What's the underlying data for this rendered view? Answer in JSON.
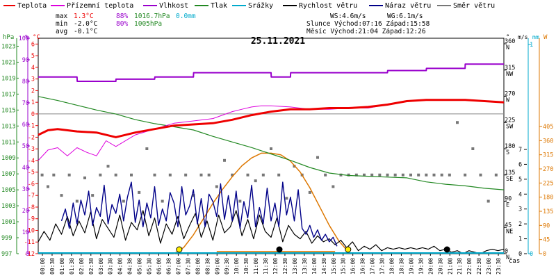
{
  "chart_data": {
    "type": "line",
    "title": "25.11.2021",
    "legend": {
      "placement": "top",
      "items": [
        {
          "key": "temp",
          "label": "Teplota",
          "color": "#ee0000"
        },
        {
          "key": "apparent",
          "label": "Přízemní teplota",
          "color": "#dd00dd"
        },
        {
          "key": "humidity",
          "label": "Vlhkost",
          "color": "#9900cc"
        },
        {
          "key": "pressure",
          "label": "Tlak",
          "color": "#228822"
        },
        {
          "key": "rain",
          "label": "Srážky",
          "color": "#00aacc"
        },
        {
          "key": "wind",
          "label": "Rychlost větru",
          "color": "#000000"
        },
        {
          "key": "gust",
          "label": "Náraz větru",
          "color": "#000088"
        },
        {
          "key": "dir",
          "label": "Směr větru",
          "color": "#777777"
        }
      ]
    },
    "summary": {
      "max_label": "max",
      "max_temp": "1.3°C",
      "max_hum": "88%",
      "max_press": "1016.7hPa",
      "max_rain": "0.0mm",
      "min_label": "min",
      "min_temp": "-2.0°C",
      "min_hum": "80%",
      "min_press": "1005hPa",
      "avg_label": "avg",
      "avg_temp": "-0.1°C",
      "ws": "WS:4.6m/s",
      "wg": "WG:6.1m/s",
      "sun": "Slunce Východ:07:16  Západ:15:58",
      "moon": "Měsíc  Východ:21:04  Západ:12:26"
    },
    "axes": {
      "hpa_title": "hPa",
      "pct_title": "%",
      "temp_title": "°C",
      "dir_title": "°",
      "ms_title": "m/s",
      "mm_title": "mm",
      "w_title": "W",
      "hpa_ticks": [
        "997",
        "999",
        "1001",
        "1003",
        "1005",
        "1007",
        "1009",
        "1011",
        "1013",
        "1015",
        "1017",
        "1019",
        "1021",
        "1023"
      ],
      "pct_ticks": [
        "0",
        "10",
        "20",
        "30",
        "40",
        "50",
        "60",
        "70",
        "80",
        "90",
        "100"
      ],
      "temp_ticks": [
        "-12",
        "-11",
        "-10",
        "-9",
        "-8",
        "-7",
        "-6",
        "-5",
        "-4",
        "-3",
        "-2",
        "-1",
        "0",
        "1",
        "2",
        "3",
        "4",
        "5",
        "6"
      ],
      "dir_ticks": [
        {
          "deg": "0",
          "label": "N"
        },
        {
          "deg": "45",
          "label": "NE"
        },
        {
          "deg": "90",
          "label": "E"
        },
        {
          "deg": "135",
          "label": "SE"
        },
        {
          "deg": "180",
          "label": "S"
        },
        {
          "deg": "225",
          "label": "SW"
        },
        {
          "deg": "270",
          "label": "W"
        },
        {
          "deg": "315",
          "label": "NW"
        },
        {
          "deg": "360",
          "label": "N"
        }
      ],
      "ms_ticks": [
        "0",
        "1",
        "2",
        "3",
        "4",
        "5",
        "6",
        "7"
      ],
      "mm_ticks": [
        "0",
        "1"
      ],
      "w_ticks": [
        "0",
        "45",
        "90",
        "135",
        "180",
        "225",
        "270",
        "315",
        "360",
        "405"
      ],
      "x_title": "čas",
      "x_ticks": [
        "00:00",
        "00:30",
        "01:00",
        "01:30",
        "02:00",
        "02:30",
        "03:00",
        "03:30",
        "04:00",
        "04:30",
        "05:00",
        "05:30",
        "06:00",
        "06:30",
        "07:00",
        "07:30",
        "08:00",
        "08:30",
        "09:00",
        "09:30",
        "10:00",
        "10:30",
        "11:00",
        "11:30",
        "12:00",
        "12:30",
        "13:00",
        "13:30",
        "14:00",
        "14:30",
        "15:00",
        "15:30",
        "16:00",
        "16:30",
        "17:00",
        "17:30",
        "18:00",
        "18:30",
        "19:00",
        "19:30",
        "20:00",
        "20:30",
        "21:00",
        "21:30",
        "22:00",
        "22:30",
        "23:00",
        "23:30"
      ],
      "temp_range": [
        -12,
        6.5
      ],
      "hpa_range": [
        997,
        1024
      ],
      "pct_range": [
        0,
        100
      ],
      "ms_range": [
        0,
        7
      ],
      "w_range": [
        0,
        405
      ],
      "dir_range": [
        0,
        360
      ]
    },
    "series": {
      "temp": {
        "h": [
          0,
          0.5,
          1,
          2,
          3,
          4,
          5,
          6,
          7,
          8,
          9,
          10,
          11,
          12,
          13,
          14,
          15,
          16,
          17,
          18,
          19,
          20,
          21,
          22,
          23,
          24
        ],
        "v": [
          -1.8,
          -1.4,
          -1.3,
          -1.5,
          -1.6,
          -2.0,
          -1.6,
          -1.3,
          -1.0,
          -0.9,
          -0.8,
          -0.5,
          -0.1,
          0.2,
          0.4,
          0.4,
          0.5,
          0.5,
          0.6,
          0.8,
          1.1,
          1.2,
          1.2,
          1.2,
          1.1,
          1.0
        ]
      },
      "apparent": {
        "h": [
          0,
          0.5,
          1,
          1.5,
          2,
          2.5,
          3,
          3.5,
          4,
          5,
          6,
          7,
          8,
          9,
          10,
          10.5,
          11,
          11.5,
          12,
          13,
          14,
          15,
          16,
          17,
          18,
          19,
          20,
          21,
          22,
          23,
          24
        ],
        "v": [
          -4.0,
          -3.1,
          -2.9,
          -3.6,
          -2.9,
          -3.3,
          -3.6,
          -2.3,
          -2.8,
          -1.8,
          -1.3,
          -0.8,
          -0.6,
          -0.4,
          0.2,
          0.4,
          0.6,
          0.7,
          0.7,
          0.6,
          0.4,
          0.4,
          0.5,
          0.5,
          0.8,
          1.1,
          1.2,
          1.2,
          1.2,
          1.1,
          1.0
        ]
      },
      "humidity": {
        "h": [
          0,
          2,
          2.01,
          4,
          4.01,
          6,
          6.01,
          8,
          8.01,
          12,
          12.01,
          13,
          13.01,
          18,
          18.01,
          20,
          20.01,
          22,
          22.01,
          24
        ],
        "v": [
          82,
          82,
          80,
          80,
          81,
          81,
          82,
          82,
          84,
          84,
          82,
          82,
          84,
          84,
          85,
          85,
          86,
          86,
          88,
          88
        ]
      },
      "pressure": {
        "h": [
          0,
          1,
          2,
          3,
          4,
          5,
          6,
          7,
          8,
          9,
          10,
          11,
          12,
          13,
          14,
          15,
          16,
          17,
          18,
          19,
          20,
          21,
          22,
          23,
          24
        ],
        "v": [
          1016.7,
          1016.2,
          1015.6,
          1015.0,
          1014.5,
          1013.8,
          1013.3,
          1012.9,
          1012.5,
          1011.7,
          1011.0,
          1010.3,
          1009.5,
          1008.7,
          1007.8,
          1007.1,
          1006.8,
          1006.7,
          1006.6,
          1006.5,
          1006.0,
          1005.7,
          1005.5,
          1005.2,
          1005.0
        ]
      },
      "wind": {
        "h": [
          0,
          0.3,
          0.6,
          0.9,
          1.2,
          1.5,
          1.8,
          2.1,
          2.4,
          2.7,
          3,
          3.3,
          3.6,
          3.9,
          4.2,
          4.5,
          4.8,
          5.1,
          5.4,
          5.7,
          6,
          6.3,
          6.6,
          6.9,
          7.2,
          7.5,
          7.8,
          8.1,
          8.4,
          8.7,
          9,
          9.3,
          9.6,
          9.9,
          10.2,
          10.5,
          10.8,
          11.1,
          11.4,
          11.7,
          12,
          12.3,
          12.6,
          12.9,
          13.2,
          13.5,
          13.8,
          14.1,
          14.4,
          14.7,
          15,
          15.3,
          15.6,
          15.9,
          16.2,
          16.5,
          16.8,
          17.1,
          17.4,
          17.7,
          18,
          18.3,
          18.6,
          18.9,
          19.2,
          19.5,
          19.8,
          20.1,
          20.4,
          20.7,
          21,
          21.3,
          21.6,
          21.9,
          22.2,
          22.5,
          22.8,
          23.1,
          23.4,
          23.7,
          24
        ],
        "v": [
          0.8,
          1.5,
          0.9,
          2.0,
          1.3,
          2.5,
          1.2,
          2.2,
          1.4,
          2.8,
          1.0,
          2.3,
          1.7,
          1.1,
          2.6,
          0.9,
          2.1,
          1.6,
          2.9,
          1.2,
          2.4,
          0.7,
          2.0,
          1.3,
          2.5,
          1.0,
          1.9,
          2.7,
          1.1,
          2.2,
          0.9,
          2.6,
          1.4,
          1.8,
          2.9,
          1.2,
          2.3,
          1.0,
          2.6,
          1.5,
          1.1,
          2.4,
          0.8,
          1.9,
          1.3,
          1.0,
          1.5,
          0.7,
          1.2,
          0.8,
          1.0,
          0.6,
          0.9,
          0.4,
          0.8,
          0.2,
          0.5,
          0.3,
          0.6,
          0.2,
          0.4,
          0.3,
          0.4,
          0.3,
          0.4,
          0.3,
          0.4,
          0.3,
          0.5,
          0.2,
          0.3,
          0.1,
          0.2,
          0.0,
          0.2,
          0.1,
          0.0,
          0.2,
          0.3,
          0.2,
          0.3
        ]
      },
      "gust": {
        "h": [
          1.2,
          1.4,
          1.6,
          1.8,
          2.0,
          2.2,
          2.4,
          2.6,
          2.8,
          3.0,
          3.2,
          3.4,
          3.6,
          3.8,
          4.0,
          4.2,
          4.4,
          4.6,
          4.8,
          5.0,
          5.2,
          5.4,
          5.6,
          5.8,
          6.0,
          6.2,
          6.4,
          6.6,
          6.8,
          7.0,
          7.2,
          7.4,
          7.6,
          7.8,
          8.0,
          8.2,
          8.4,
          8.6,
          8.8,
          9.0,
          9.2,
          9.4,
          9.6,
          9.8,
          10.0,
          10.2,
          10.4,
          10.6,
          10.8,
          11.0,
          11.2,
          11.4,
          11.6,
          11.8,
          12.0,
          12.2,
          12.4,
          12.6,
          12.8,
          13.0,
          13.2,
          13.4,
          13.6,
          13.8,
          14.0,
          14.2,
          14.4,
          14.6,
          14.8,
          15.0,
          15.2,
          15.4
        ],
        "v": [
          2.2,
          3.0,
          1.7,
          3.4,
          2.0,
          3.6,
          2.6,
          4.2,
          1.9,
          3.1,
          2.5,
          4.6,
          2.0,
          3.3,
          2.7,
          4.0,
          2.2,
          3.8,
          4.8,
          2.1,
          3.6,
          1.8,
          3.4,
          2.4,
          4.5,
          1.9,
          3.0,
          2.2,
          4.1,
          3.4,
          1.8,
          4.5,
          2.6,
          3.2,
          4.3,
          2.0,
          3.7,
          1.8,
          4.0,
          3.5,
          2.5,
          4.7,
          2.3,
          3.9,
          2.2,
          4.2,
          1.7,
          3.5,
          2.4,
          4.6,
          1.8,
          3.1,
          2.0,
          4.4,
          2.2,
          3.4,
          1.8,
          4.8,
          2.6,
          3.8,
          2.2,
          4.3,
          1.7,
          1.3,
          1.9,
          1.1,
          1.6,
          0.9,
          1.3,
          0.8,
          1.1,
          0.5
        ]
      },
      "radiation": {
        "h": [
          7.0,
          7.5,
          8.0,
          8.5,
          9.0,
          9.5,
          10.0,
          10.5,
          11.0,
          11.5,
          12.0,
          12.5,
          13.0,
          13.5,
          14.0,
          14.5,
          15.0,
          15.5,
          16.0
        ],
        "v": [
          0,
          20,
          60,
          110,
          160,
          205,
          245,
          280,
          305,
          320,
          320,
          315,
          295,
          260,
          210,
          150,
          90,
          40,
          5
        ]
      },
      "direction": {
        "h": [
          0.2,
          0.5,
          0.8,
          1.2,
          1.6,
          2.0,
          2.4,
          2.8,
          3.2,
          3.6,
          4.0,
          4.4,
          4.8,
          5.2,
          5.6,
          6.0,
          6.4,
          6.8,
          7.2,
          7.6,
          8.0,
          8.4,
          8.8,
          9.2,
          9.6,
          10.0,
          10.4,
          10.8,
          11.2,
          11.6,
          12.0,
          12.4,
          12.8,
          13.2,
          13.6,
          14.0,
          14.4,
          14.8,
          15.2,
          15.6,
          16.0,
          16.4,
          16.8,
          17.2,
          17.6,
          18.0,
          18.4,
          18.8,
          19.2,
          19.6,
          20.0,
          20.4,
          20.8,
          21.2,
          21.6,
          22.0,
          22.4,
          22.8,
          23.2,
          23.6
        ],
        "v": [
          135,
          115,
          135,
          100,
          135,
          90,
          130,
          100,
          135,
          150,
          135,
          90,
          135,
          105,
          180,
          135,
          90,
          135,
          375,
          135,
          100,
          135,
          135,
          115,
          160,
          135,
          90,
          135,
          125,
          135,
          180,
          135,
          95,
          150,
          135,
          105,
          165,
          135,
          115,
          135,
          135,
          135,
          135,
          135,
          135,
          135,
          135,
          135,
          135,
          135,
          135,
          135,
          135,
          135,
          225,
          135,
          180,
          135,
          90,
          135
        ]
      }
    },
    "markers": {
      "sunrise_h": 7.27,
      "sunset_h": 15.97,
      "moonrise_h": 21.07,
      "moonset_h": 12.43
    }
  }
}
